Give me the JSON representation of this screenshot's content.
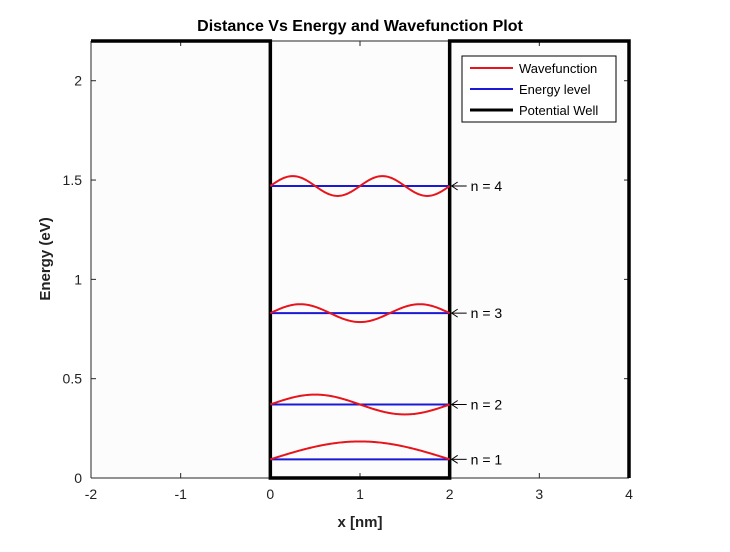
{
  "chart_data": {
    "type": "line",
    "title": "Distance Vs Energy and Wavefunction Plot",
    "xlabel": "x [nm]",
    "ylabel": "Energy  (eV)",
    "xlim": [
      -2,
      4
    ],
    "ylim": [
      0,
      2.2
    ],
    "xticks": [
      -2,
      -1,
      0,
      1,
      2,
      3,
      4
    ],
    "xtick_labels": [
      "-2",
      "-1",
      "0",
      "1",
      "2",
      "3",
      "4"
    ],
    "yticks": [
      0,
      0.5,
      1,
      1.5,
      2
    ],
    "ytick_labels": [
      "0",
      "0.5",
      "1",
      "1.5",
      "2"
    ],
    "grid": false,
    "legend_position": "top-right",
    "well": {
      "x_left": 0,
      "x_right": 2,
      "top": 2.2
    },
    "levels": [
      {
        "n": 1,
        "energy": 0.094,
        "amplitude": 0.09,
        "label": "n = 1"
      },
      {
        "n": 2,
        "energy": 0.37,
        "amplitude": 0.05,
        "label": "n = 2"
      },
      {
        "n": 3,
        "energy": 0.83,
        "amplitude": 0.045,
        "label": "n = 3"
      },
      {
        "n": 4,
        "energy": 1.47,
        "amplitude": 0.05,
        "label": "n = 4"
      }
    ],
    "series": [
      {
        "name": "Wavefunction",
        "color": "#e8141b"
      },
      {
        "name": "Energy level",
        "color": "#1a1ad6"
      },
      {
        "name": "Potential Well",
        "color": "#000000"
      }
    ]
  }
}
